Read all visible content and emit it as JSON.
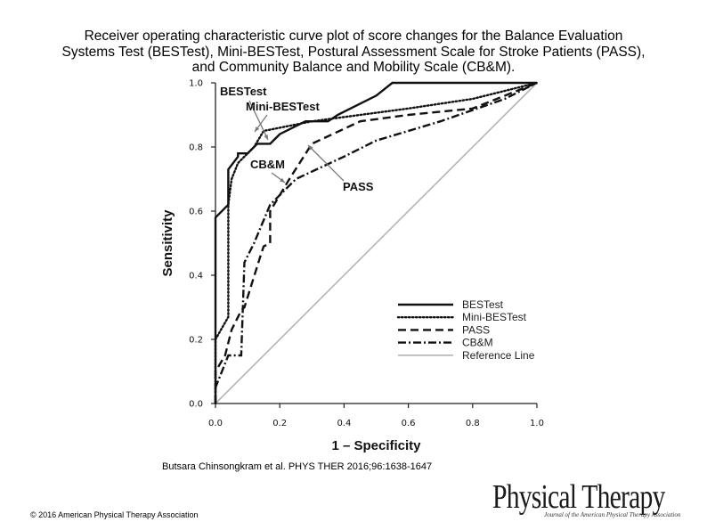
{
  "title": {
    "line1": "Receiver operating characteristic curve plot of score changes for the Balance Evaluation",
    "line2": "Systems Test (BESTest), Mini-BESTest, Postural Assessment Scale for Stroke Patients (PASS),",
    "line3": "and Community Balance and Mobility Scale (CB&M)."
  },
  "citation": "Butsara Chinsongkram et al. PHYS THER 2016;96:1638-1647",
  "copyright": "© 2016 American Physical Therapy Association",
  "logo": {
    "name": "Physical Therapy",
    "subtitle": "Journal of the American Physical Therapy Association"
  },
  "chart_data": {
    "type": "line",
    "title": "",
    "xlabel": "1 – Specificity",
    "ylabel": "Sensitivity",
    "xlim": [
      0,
      1
    ],
    "ylim": [
      0,
      1
    ],
    "xticks": [
      "0.0",
      "0.2",
      "0.4",
      "0.6",
      "0.8",
      "1.0"
    ],
    "yticks": [
      "0.0",
      "0.2",
      "0.4",
      "0.6",
      "0.8",
      "1.0"
    ],
    "grid": false,
    "legend_position": "bottom-right",
    "series": [
      {
        "name": "BESTest",
        "style": "solid",
        "color": "#111111",
        "x": [
          0,
          0,
          0.04,
          0.04,
          0.07,
          0.07,
          0.1,
          0.13,
          0.13,
          0.17,
          0.2,
          0.28,
          0.35,
          0.38,
          0.5,
          0.55,
          1
        ],
        "y": [
          0,
          0.58,
          0.62,
          0.73,
          0.77,
          0.78,
          0.78,
          0.81,
          0.81,
          0.81,
          0.84,
          0.88,
          0.88,
          0.9,
          0.96,
          1,
          1
        ]
      },
      {
        "name": "Mini-BESTest",
        "style": "dotted",
        "color": "#111111",
        "x": [
          0,
          0,
          0.04,
          0.04,
          0.05,
          0.07,
          0.12,
          0.15,
          0.3,
          0.6,
          0.8,
          1
        ],
        "y": [
          0,
          0.2,
          0.27,
          0.62,
          0.7,
          0.75,
          0.8,
          0.85,
          0.88,
          0.92,
          0.95,
          1
        ]
      },
      {
        "name": "PASS",
        "style": "dashed",
        "color": "#111111",
        "x": [
          0,
          0,
          0.03,
          0.05,
          0.08,
          0.09,
          0.14,
          0.15,
          0.17,
          0.17,
          0.23,
          0.3,
          0.45,
          0.6,
          0.8,
          0.95,
          1
        ],
        "y": [
          0,
          0.1,
          0.15,
          0.23,
          0.29,
          0.3,
          0.46,
          0.49,
          0.5,
          0.6,
          0.7,
          0.81,
          0.88,
          0.9,
          0.92,
          0.98,
          1
        ]
      },
      {
        "name": "CB&M",
        "style": "dashdot",
        "color": "#111111",
        "x": [
          0,
          0,
          0.04,
          0.08,
          0.09,
          0.12,
          0.17,
          0.25,
          0.4,
          0.5,
          0.7,
          0.9,
          1
        ],
        "y": [
          0,
          0.05,
          0.15,
          0.15,
          0.44,
          0.5,
          0.62,
          0.7,
          0.77,
          0.82,
          0.88,
          0.95,
          1
        ]
      },
      {
        "name": "Reference Line",
        "style": "solid",
        "color": "#b4b4b4",
        "x": [
          0,
          1
        ],
        "y": [
          0,
          1
        ]
      }
    ],
    "annotations": [
      {
        "text": "BESTest",
        "series": "BESTest"
      },
      {
        "text": "Mini-BESTest",
        "series": "Mini-BESTest"
      },
      {
        "text": "CB&M",
        "series": "CB&M"
      },
      {
        "text": "PASS",
        "series": "PASS"
      }
    ]
  }
}
